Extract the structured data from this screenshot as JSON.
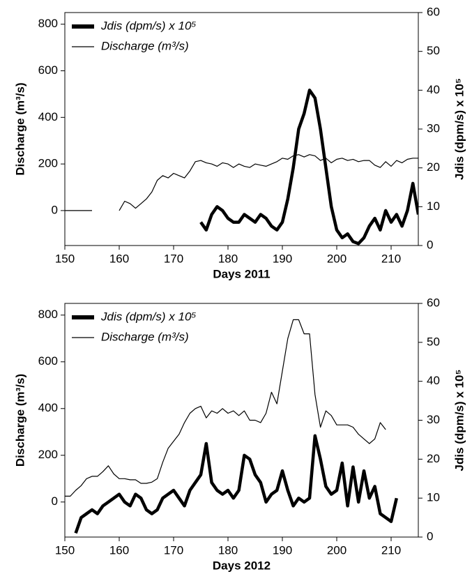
{
  "chart_data": [
    {
      "type": "line",
      "xlabel": "Days 2011",
      "ylabel": "Discharge (m³/s)",
      "y2label": "Jdis (dpm/s) x 10⁵",
      "legend": "upper left",
      "x": [
        150,
        151,
        152,
        153,
        154,
        155,
        156,
        157,
        158,
        159,
        160,
        161,
        162,
        163,
        164,
        165,
        166,
        167,
        168,
        169,
        170,
        171,
        172,
        173,
        174,
        175,
        176,
        177,
        178,
        179,
        180,
        181,
        182,
        183,
        184,
        185,
        186,
        187,
        188,
        189,
        190,
        191,
        192,
        193,
        194,
        195,
        196,
        197,
        198,
        199,
        200,
        201,
        202,
        203,
        204,
        205,
        206,
        207,
        208,
        209,
        210,
        211,
        212,
        213,
        214,
        215
      ],
      "xlim": [
        150,
        215
      ],
      "xticks": [
        150,
        160,
        170,
        180,
        190,
        200,
        210
      ],
      "ylim": [
        -150,
        850
      ],
      "yticks": [
        0,
        200,
        400,
        600,
        800
      ],
      "y2lim": [
        0,
        60
      ],
      "y2ticks": [
        0,
        10,
        20,
        30,
        40,
        50,
        60
      ],
      "series": [
        {
          "name": "Jdis (dpm/s) x 10⁵",
          "color": "#000000",
          "axis": "y2",
          "values": [
            null,
            null,
            null,
            null,
            null,
            null,
            null,
            null,
            null,
            null,
            null,
            null,
            null,
            null,
            null,
            null,
            null,
            null,
            null,
            null,
            null,
            null,
            null,
            null,
            null,
            6,
            4,
            8,
            10,
            9,
            7,
            6,
            6,
            8,
            7,
            6,
            8,
            7,
            5,
            4,
            6,
            12,
            20,
            30,
            34,
            40,
            38,
            30,
            20,
            10,
            4,
            2,
            3,
            1,
            0.5,
            2,
            5,
            7,
            4,
            9,
            6,
            8,
            5,
            9,
            16,
            8
          ]
        },
        {
          "name": "Discharge (m³/s)",
          "color": "#000000",
          "values": [
            0,
            0,
            0,
            0,
            0,
            0,
            null,
            0,
            null,
            null,
            0,
            40,
            30,
            10,
            30,
            50,
            80,
            130,
            150,
            140,
            160,
            150,
            140,
            170,
            210,
            215,
            205,
            200,
            190,
            205,
            200,
            185,
            200,
            190,
            185,
            200,
            195,
            190,
            200,
            210,
            225,
            220,
            235,
            240,
            230,
            240,
            235,
            215,
            225,
            205,
            220,
            225,
            215,
            220,
            210,
            215,
            215,
            195,
            185,
            210,
            190,
            215,
            205,
            220,
            225,
            225
          ]
        }
      ]
    },
    {
      "type": "line",
      "xlabel": "Days 2012",
      "ylabel": "Discharge (m³/s)",
      "y2label": "Jdis (dpm/s) x 10⁵",
      "legend": "upper left",
      "x": [
        150,
        151,
        152,
        153,
        154,
        155,
        156,
        157,
        158,
        159,
        160,
        161,
        162,
        163,
        164,
        165,
        166,
        167,
        168,
        169,
        170,
        171,
        172,
        173,
        174,
        175,
        176,
        177,
        178,
        179,
        180,
        181,
        182,
        183,
        184,
        185,
        186,
        187,
        188,
        189,
        190,
        191,
        192,
        193,
        194,
        195,
        196,
        197,
        198,
        199,
        200,
        201,
        202,
        203,
        204,
        205,
        206,
        207,
        208,
        209,
        210,
        211
      ],
      "xlim": [
        150,
        215
      ],
      "xticks": [
        150,
        160,
        170,
        180,
        190,
        200,
        210
      ],
      "ylim": [
        -150,
        850
      ],
      "yticks": [
        0,
        200,
        400,
        600,
        800
      ],
      "y2lim": [
        0,
        60
      ],
      "y2ticks": [
        0,
        10,
        20,
        30,
        40,
        50,
        60
      ],
      "series": [
        {
          "name": "Jdis (dpm/s) x 10⁵",
          "color": "#000000",
          "axis": "y2",
          "values": [
            null,
            null,
            1,
            5,
            6,
            7,
            6,
            8,
            9,
            10,
            11,
            9,
            8,
            11,
            10,
            7,
            6,
            7,
            10,
            11,
            12,
            10,
            8,
            12,
            14,
            16,
            24,
            14,
            12,
            11,
            12,
            10,
            12,
            21,
            20,
            16,
            14,
            9,
            11,
            12,
            17,
            12,
            8,
            10,
            9,
            10,
            26,
            20,
            13,
            11,
            12,
            19,
            8,
            18,
            9,
            17,
            10,
            13,
            6,
            5,
            4,
            10
          ]
        },
        {
          "name": "Discharge (m³/s)",
          "color": "#000000",
          "values": [
            25,
            25,
            50,
            70,
            100,
            110,
            110,
            130,
            155,
            120,
            100,
            100,
            95,
            95,
            80,
            80,
            85,
            100,
            170,
            230,
            260,
            290,
            340,
            380,
            400,
            410,
            360,
            390,
            380,
            400,
            380,
            390,
            370,
            390,
            350,
            350,
            340,
            380,
            470,
            420,
            560,
            700,
            780,
            780,
            720,
            720,
            460,
            320,
            390,
            370,
            330,
            330,
            330,
            320,
            290,
            270,
            250,
            270,
            340,
            310,
            null,
            null
          ]
        }
      ]
    }
  ]
}
